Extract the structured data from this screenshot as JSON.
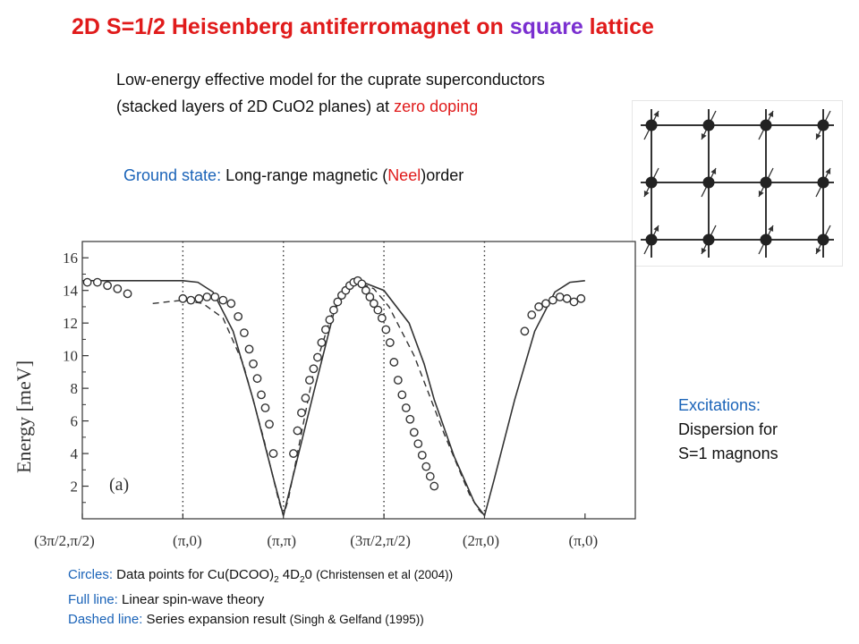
{
  "title": {
    "part1": "2D S=1/2 Heisenberg antiferromagnet on ",
    "part2": "square",
    "part3": " lattice"
  },
  "intro": {
    "line1": "Low-energy effective model for the cuprate superconductors",
    "line2a": "(stacked layers of 2D CuO2 planes) at ",
    "line2b": "zero doping"
  },
  "ground": {
    "label": "Ground state:",
    "text1": " Long-range magnetic (",
    "neel": "Neel",
    "text2": ")order"
  },
  "excitations": {
    "line1": "Excitations:",
    "line2": "Dispersion for",
    "line3": "S=1 magnons"
  },
  "legend": {
    "circles_label": "Circles:",
    "circles_text": " Data points for Cu(DCOO)",
    "circles_sub1": "2",
    "circles_mid": " 4D",
    "circles_sub2": "2",
    "circles_end": "0 ",
    "circles_ref": "(Christensen et al (2004))",
    "full_label": "Full line:",
    "full_text": " Linear spin-wave theory",
    "dashed_label": "Dashed line:",
    "dashed_text": " Series expansion result ",
    "dashed_ref": "(Singh & Gelfand (1995))"
  },
  "colors": {
    "red": "#e01b1b",
    "purple": "#7a2fd0",
    "blue": "#1a63b8"
  },
  "chart_data": {
    "type": "line",
    "ylabel": "Energy [meV]",
    "panel_label": "(a)",
    "ylim": [
      0,
      17
    ],
    "y_ticks": [
      "2",
      "4",
      "6",
      "8",
      "10",
      "12",
      "14",
      "16"
    ],
    "x_ticks": [
      "(3π/2,π/2)",
      "(π,0)",
      "(π,π)",
      "(3π/2,π/2)",
      "(2π,0)",
      "(π,0)"
    ],
    "full_line": {
      "x": [
        0,
        0.5,
        0.9,
        1.0,
        1.15,
        1.3,
        1.5,
        1.7,
        1.9,
        2.0,
        2.3,
        2.5,
        2.6,
        2.75,
        3.0,
        3.25,
        3.4,
        3.5,
        3.7,
        3.9,
        4.0,
        4.1,
        4.3,
        4.5,
        4.7,
        4.85,
        5.0
      ],
      "y": [
        14.6,
        14.6,
        14.6,
        14.6,
        14.5,
        13.9,
        11.5,
        7.3,
        2.5,
        0.2,
        7.7,
        12.6,
        14.0,
        14.6,
        14.0,
        12.0,
        9.5,
        7.3,
        3.8,
        1.0,
        0.2,
        2.5,
        7.3,
        11.5,
        13.9,
        14.5,
        14.6
      ]
    },
    "dashed_line": {
      "x": [
        0.7,
        1.0,
        1.2,
        1.4,
        1.6,
        1.8,
        1.95,
        2.0,
        2.05,
        2.3,
        2.5,
        2.65,
        2.75,
        2.9,
        3.05,
        3.3,
        3.6,
        3.85,
        3.95,
        4.0
      ],
      "y": [
        13.2,
        13.4,
        13.2,
        12.3,
        9.5,
        5.0,
        1.2,
        0.2,
        1.2,
        9.0,
        12.9,
        14.2,
        14.5,
        14.1,
        13.0,
        10.0,
        5.2,
        1.5,
        0.5,
        0.2
      ]
    },
    "data_points": {
      "x": [
        0.05,
        0.15,
        0.25,
        0.35,
        0.45,
        1.0,
        1.08,
        1.16,
        1.24,
        1.32,
        1.4,
        1.48,
        1.55,
        1.61,
        1.66,
        1.7,
        1.74,
        1.78,
        1.82,
        1.86,
        1.9,
        2.1,
        2.14,
        2.18,
        2.22,
        2.26,
        2.3,
        2.34,
        2.38,
        2.42,
        2.46,
        2.5,
        2.54,
        2.58,
        2.62,
        2.66,
        2.7,
        2.74,
        2.78,
        2.82,
        2.86,
        2.9,
        2.94,
        2.98,
        3.02,
        3.06,
        3.1,
        3.14,
        3.18,
        3.22,
        3.26,
        3.3,
        3.34,
        3.38,
        3.42,
        3.46,
        3.5,
        4.4,
        4.47,
        4.54,
        4.61,
        4.68,
        4.75,
        4.82,
        4.89,
        4.96
      ],
      "y": [
        14.5,
        14.5,
        14.3,
        14.1,
        13.8,
        13.5,
        13.4,
        13.5,
        13.6,
        13.6,
        13.4,
        13.2,
        12.4,
        11.4,
        10.4,
        9.5,
        8.6,
        7.6,
        6.8,
        5.8,
        4.0,
        4.0,
        5.4,
        6.5,
        7.4,
        8.5,
        9.2,
        9.9,
        10.8,
        11.6,
        12.2,
        12.8,
        13.3,
        13.7,
        14.0,
        14.3,
        14.5,
        14.6,
        14.4,
        14.0,
        13.6,
        13.2,
        12.8,
        12.3,
        11.6,
        10.8,
        9.6,
        8.5,
        7.6,
        6.8,
        6.1,
        5.3,
        4.6,
        3.9,
        3.2,
        2.6,
        2.0,
        11.5,
        12.5,
        13.0,
        13.2,
        13.4,
        13.6,
        13.5,
        13.3,
        13.5
      ]
    }
  }
}
